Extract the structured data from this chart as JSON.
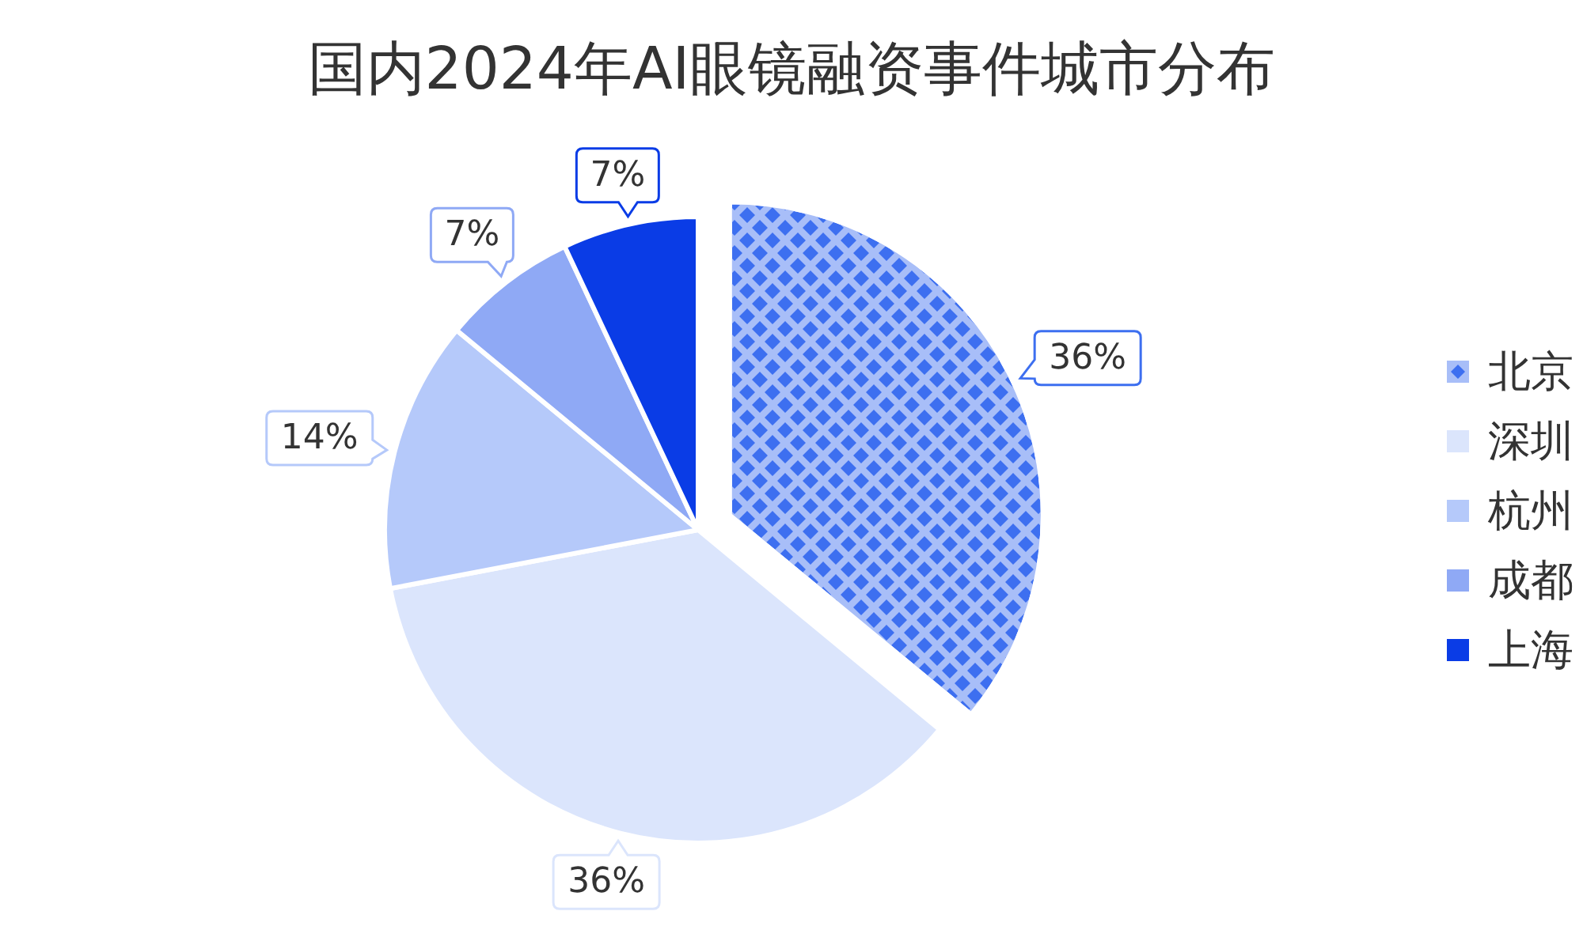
{
  "chart_data": {
    "type": "pie",
    "title": "国内2024年AI眼镜融资事件城市分布",
    "categories": [
      "北京",
      "深圳",
      "杭州",
      "成都",
      "上海"
    ],
    "values": [
      36,
      36,
      14,
      7,
      7
    ],
    "colors": [
      "#3d6ff0",
      "#dbe5fc",
      "#b5c9fa",
      "#8fa9f5",
      "#0a3ce6"
    ],
    "value_labels": [
      "36%",
      "36%",
      "14%",
      "7%",
      "7%"
    ],
    "legend": "right"
  }
}
